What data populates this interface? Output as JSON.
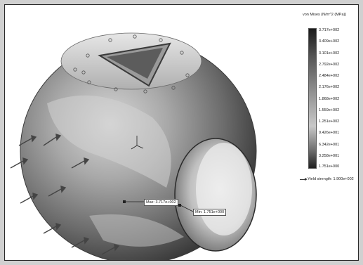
{
  "legend": {
    "title": "von Mises (N/m^2 (MPa))",
    "ticks": [
      "3.717e+002",
      "3.409e+002",
      "3.101e+002",
      "2.792e+002",
      "2.484e+002",
      "2.176e+002",
      "1.868e+002",
      "1.559e+002",
      "1.251e+002",
      "9.426e+001",
      "6.342e+001",
      "3.258e+001",
      "1.751e+000"
    ],
    "yield": "Yield strength: 1.900e+002"
  },
  "probes": {
    "max": "Max: 3.717e+002",
    "min": "Min: 1.751e+000"
  },
  "colors": {
    "background": "#ffffff",
    "frame": "#2a2a2a"
  }
}
